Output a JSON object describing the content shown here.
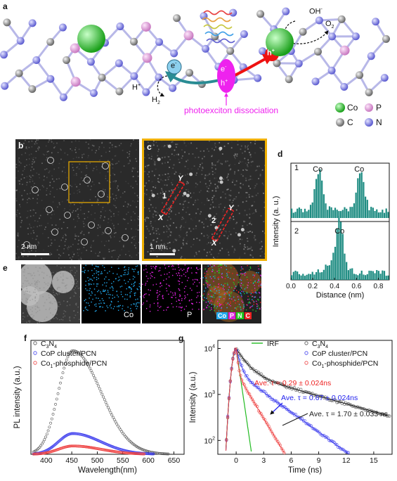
{
  "panels": {
    "a": "a",
    "b": "b",
    "c": "c",
    "d": "d",
    "e": "e",
    "f": "f",
    "g": "g"
  },
  "panel_a": {
    "electron": "e",
    "electron_sup": "-",
    "hole": "h",
    "hole_sup": "+",
    "h_plus": "H",
    "h_plus_sup": "+",
    "h2": "H",
    "h2_sub": "2",
    "oh": "OH",
    "oh_sup": "-",
    "o2": "O",
    "o2_sub": "2",
    "caption": "photoexciton dissociation",
    "legend": [
      {
        "label": "Co",
        "color": "#33cc33"
      },
      {
        "label": "P",
        "color": "#e59be0"
      },
      {
        "label": "C",
        "color": "#888888"
      },
      {
        "label": "N",
        "color": "#8a8ae6"
      }
    ]
  },
  "panel_b": {
    "scale": "2 nm"
  },
  "panel_c": {
    "scale": "1 nm",
    "marks": [
      {
        "num": "1",
        "y": "Y",
        "x": "X"
      },
      {
        "num": "2",
        "y": "Y",
        "x": "X"
      }
    ]
  },
  "panel_d": {
    "ylabel": "Intensity (a. u.)",
    "xlabel": "Distance (nm)",
    "ticks": [
      "0.0",
      "0.2",
      "0.4",
      "0.6",
      "0.8"
    ],
    "profile1_label": "1",
    "profile1_peaks": [
      "Co",
      "Co"
    ],
    "profile2_label": "2",
    "profile2_peaks": [
      "Co"
    ]
  },
  "panel_e": {
    "labels": [
      "Co",
      "P"
    ],
    "legend": [
      {
        "label": "Co",
        "color": "#22aaee"
      },
      {
        "label": "P",
        "color": "#dd22dd"
      },
      {
        "label": "N",
        "color": "#22cc22"
      },
      {
        "label": "C",
        "color": "#ee2222"
      }
    ]
  },
  "chart_data": [
    {
      "type": "scatter",
      "panel": "f",
      "xlabel": "Wavelength(nm)",
      "ylabel": "PL intensity (a.u.)",
      "xlim": [
        370,
        670
      ],
      "ylim": [
        0,
        1.1
      ],
      "xticks": [
        400,
        450,
        500,
        550,
        600,
        650
      ],
      "series": [
        {
          "name_main": "C",
          "name_sub": "3",
          "name_rest": "N",
          "name_sub2": "4",
          "color": "#555555",
          "peak": 452,
          "amp": 1.0
        },
        {
          "name_main": "CoP cluster/PCN",
          "name_sub": "",
          "name_rest": "",
          "name_sub2": "",
          "color": "#4444ee",
          "peak": 452,
          "amp": 0.2
        },
        {
          "name_main": "Co",
          "name_sub": "1",
          "name_rest": "-phosphide/PCN",
          "name_sub2": "",
          "color": "#ee4444",
          "peak": 452,
          "amp": 0.08
        }
      ]
    },
    {
      "type": "scatter",
      "panel": "g",
      "xlabel": "Time (ns)",
      "ylabel": "Intensity (a.u.)",
      "xlim": [
        -2,
        17
      ],
      "ylim_log": [
        50,
        15000
      ],
      "xticks": [
        0,
        3,
        6,
        9,
        12,
        15
      ],
      "yticks_exp": [
        "2",
        "3",
        "4"
      ],
      "irf_label": "IRF",
      "series": [
        {
          "name_main": "C",
          "name_sub": "3",
          "name_rest": "N",
          "name_sub2": "4",
          "color": "#555555",
          "tau": 1.7
        },
        {
          "name_main": "CoP cluster/PCN",
          "name_sub": "",
          "name_rest": "",
          "name_sub2": "",
          "color": "#4444ee",
          "tau": 0.67
        },
        {
          "name_main": "Co",
          "name_sub": "1",
          "name_rest": "-phosphide/PCN",
          "name_sub2": "",
          "color": "#ee4444",
          "tau": 0.29
        }
      ],
      "annotations": [
        {
          "text": "Ave. τ = 0.29 ± 0.024ns",
          "color": "#ee2222"
        },
        {
          "text": "Ave. τ = 0.67 ± 0.024ns",
          "color": "#2222ee"
        },
        {
          "text": "Ave. τ = 1.70 ± 0.033 ns",
          "color": "#222222"
        }
      ]
    }
  ]
}
